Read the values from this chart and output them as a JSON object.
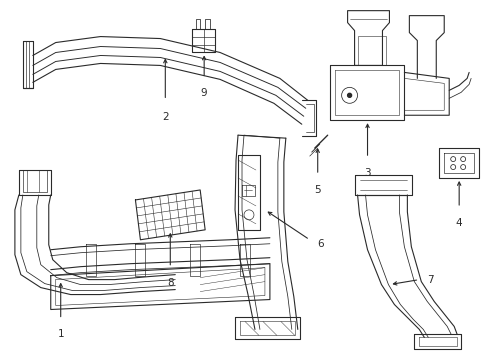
{
  "background_color": "#ffffff",
  "line_color": "#2a2a2a",
  "line_width": 0.8,
  "label_fontsize": 7.5,
  "figsize": [
    4.9,
    3.6
  ],
  "dpi": 100
}
